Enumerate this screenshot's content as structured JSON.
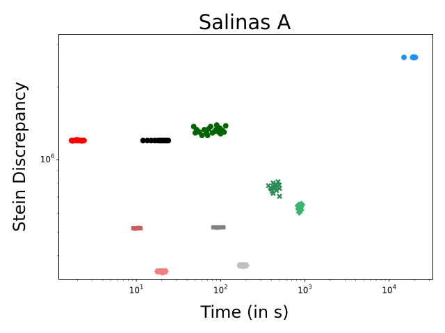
{
  "chart_data": {
    "type": "scatter",
    "title": "Salinas A",
    "xlabel": "Time (in s)",
    "ylabel": "Stein Discrepancy",
    "xscale": "log",
    "yscale": "log",
    "xlim": [
      1.2,
      33000
    ],
    "ylim": [
      320000,
      3300000
    ],
    "xticks": [
      {
        "value": 10,
        "base": "10",
        "exp": "1"
      },
      {
        "value": 100,
        "base": "10",
        "exp": "2"
      },
      {
        "value": 1000,
        "base": "10",
        "exp": "3"
      },
      {
        "value": 10000,
        "base": "10",
        "exp": "4"
      }
    ],
    "yticks": [
      {
        "value": 1000000,
        "base": "10",
        "exp": "6"
      }
    ],
    "grid": false,
    "legend": "none",
    "series": [
      {
        "color": "#ff0000",
        "marker": "circle",
        "points": [
          [
            1.7,
            1200000
          ],
          [
            1.8,
            1200000
          ],
          [
            1.9,
            1200000
          ],
          [
            2.0,
            1200000
          ],
          [
            2.1,
            1200000
          ],
          [
            2.2,
            1200000
          ],
          [
            2.3,
            1200000
          ],
          [
            2.4,
            1200000
          ],
          [
            1.75,
            1195000
          ],
          [
            2.05,
            1205000
          ],
          [
            2.25,
            1195000
          ],
          [
            1.95,
            1208000
          ]
        ]
      },
      {
        "color": "#000000",
        "marker": "circle",
        "points": [
          [
            12,
            1200000
          ],
          [
            13.5,
            1200000
          ],
          [
            15,
            1200000
          ],
          [
            16.5,
            1200000
          ],
          [
            18,
            1200000
          ],
          [
            19,
            1200000
          ],
          [
            20,
            1200000
          ],
          [
            21,
            1200000
          ],
          [
            22,
            1200000
          ],
          [
            23,
            1200000
          ],
          [
            24,
            1200000
          ],
          [
            19.5,
            1200000
          ]
        ]
      },
      {
        "color": "#006400",
        "marker": "circle",
        "points": [
          [
            48,
            1370000
          ],
          [
            52,
            1330000
          ],
          [
            56,
            1300000
          ],
          [
            60,
            1260000
          ],
          [
            64,
            1330000
          ],
          [
            68,
            1290000
          ],
          [
            72,
            1340000
          ],
          [
            76,
            1370000
          ],
          [
            80,
            1290000
          ],
          [
            85,
            1310000
          ],
          [
            90,
            1390000
          ],
          [
            95,
            1300000
          ],
          [
            100,
            1280000
          ],
          [
            105,
            1320000
          ],
          [
            110,
            1300000
          ],
          [
            115,
            1380000
          ],
          [
            50,
            1290000
          ],
          [
            70,
            1260000
          ],
          [
            88,
            1330000
          ],
          [
            98,
            1350000
          ]
        ]
      },
      {
        "color": "#2e8b57",
        "marker": "x",
        "points": [
          [
            370,
            780000
          ],
          [
            400,
            755000
          ],
          [
            420,
            800000
          ],
          [
            440,
            770000
          ],
          [
            460,
            745000
          ],
          [
            480,
            810000
          ],
          [
            500,
            760000
          ],
          [
            500,
            705000
          ],
          [
            430,
            760000
          ],
          [
            410,
            740000
          ],
          [
            450,
            790000
          ],
          [
            390,
            765000
          ],
          [
            470,
            775000
          ],
          [
            420,
            725000
          ],
          [
            495,
            785000
          ]
        ]
      },
      {
        "color": "#3cb371",
        "marker": "diamond",
        "points": [
          [
            850,
            650000
          ],
          [
            880,
            640000
          ],
          [
            900,
            620000
          ],
          [
            870,
            630000
          ],
          [
            830,
            645000
          ],
          [
            910,
            655000
          ],
          [
            860,
            605000
          ],
          [
            890,
            635000
          ],
          [
            840,
            625000
          ],
          [
            920,
            648000
          ],
          [
            875,
            615000
          ]
        ]
      },
      {
        "color": "#cd5c5c",
        "marker": "square",
        "points": [
          [
            9.2,
            520000
          ],
          [
            9.6,
            520000
          ],
          [
            10.0,
            520000
          ],
          [
            10.4,
            520000
          ],
          [
            10.8,
            520000
          ],
          [
            11.2,
            520000
          ],
          [
            9.8,
            518000
          ],
          [
            10.6,
            522000
          ]
        ]
      },
      {
        "color": "#808080",
        "marker": "square",
        "points": [
          [
            82,
            525000
          ],
          [
            86,
            525000
          ],
          [
            90,
            525000
          ],
          [
            95,
            525000
          ],
          [
            100,
            525000
          ],
          [
            105,
            525000
          ],
          [
            108,
            525000
          ],
          [
            92,
            523000
          ]
        ]
      },
      {
        "color": "#f08080",
        "marker": "hexagon",
        "points": [
          [
            18,
            345000
          ],
          [
            19,
            345000
          ],
          [
            20,
            345000
          ],
          [
            21,
            345000
          ],
          [
            22,
            345000
          ],
          [
            20.5,
            342000
          ]
        ]
      },
      {
        "color": "#c0c0c0",
        "marker": "hexagon",
        "points": [
          [
            170,
            365000
          ],
          [
            180,
            365000
          ],
          [
            190,
            365000
          ],
          [
            200,
            365000
          ],
          [
            185,
            363000
          ]
        ]
      },
      {
        "color": "#1e90ff",
        "marker": "circle",
        "points": [
          [
            15000,
            2650000
          ],
          [
            19000,
            2650000
          ],
          [
            19500,
            2660000
          ],
          [
            20000,
            2650000
          ],
          [
            20500,
            2650000
          ],
          [
            19800,
            2640000
          ]
        ]
      }
    ]
  }
}
